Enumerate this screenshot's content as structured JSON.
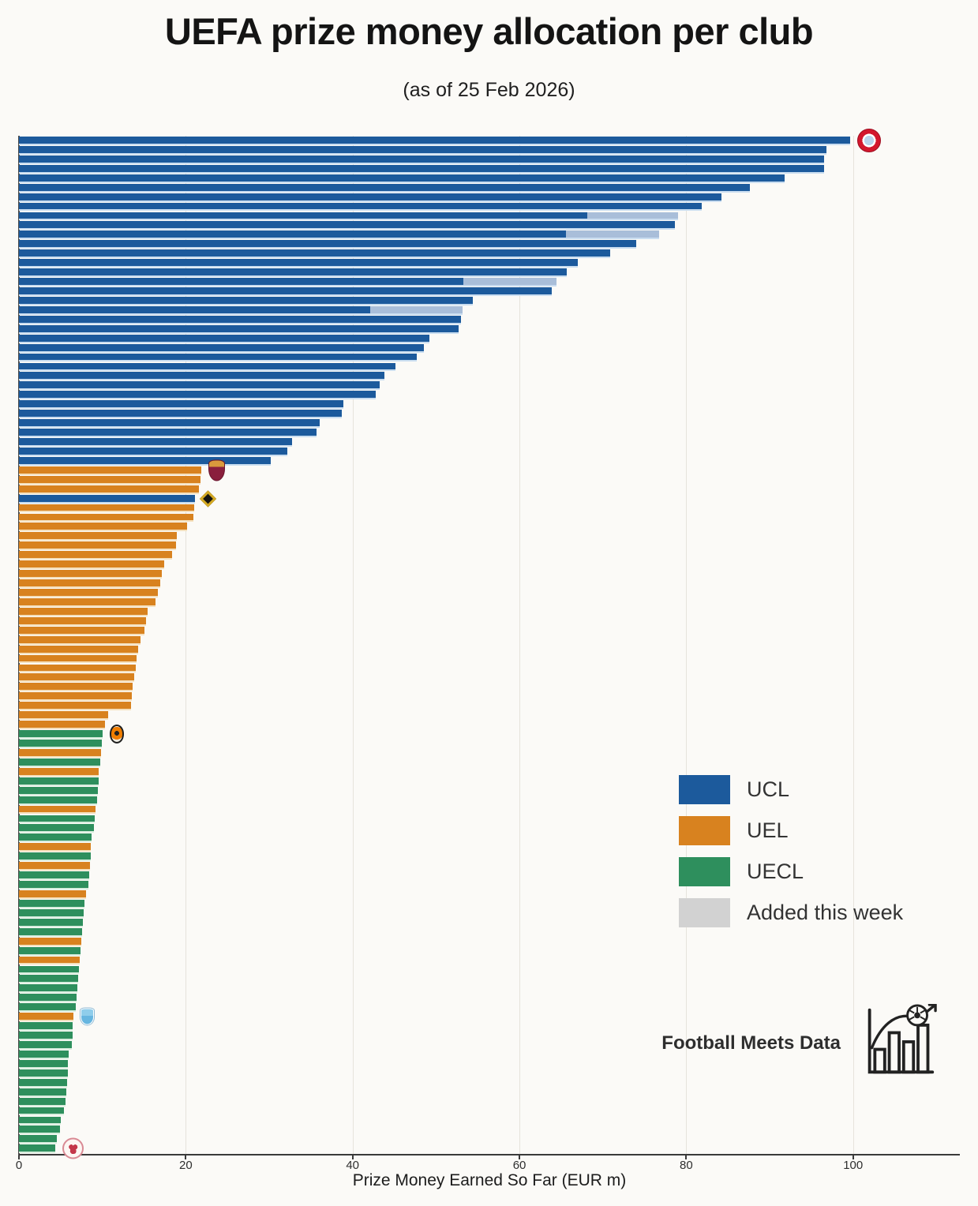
{
  "title": "UEFA prize money allocation per club",
  "subtitle": "(as of 25 Feb 2026)",
  "attribution": {
    "text": "Football Meets Data",
    "logo_icon": "bar-chart-with-football-and-arrow"
  },
  "colors": {
    "background": "#fbfaf7",
    "UCL": "#1c5a9c",
    "UEL": "#d8821f",
    "UECL": "#2e8f5d",
    "added_segment": "#a9bed9",
    "added_legend": "#d2d2d2",
    "row_tint_UCL": "#c9ddf0",
    "row_tint_UEL": "#f5e0bd",
    "row_tint_UECL": "#d8edde",
    "gridline": "#e6e3dc",
    "axis": "#3a3a3a"
  },
  "legend": {
    "items": [
      {
        "id": "UCL",
        "label": "UCL"
      },
      {
        "id": "UEL",
        "label": "UEL"
      },
      {
        "id": "UECL",
        "label": "UECL"
      },
      {
        "id": "added",
        "label": "Added this week"
      }
    ]
  },
  "badges": {
    "bayern": {
      "desc": "red-white roundel crest with light blue centre (FC Bayern München)"
    },
    "roma": {
      "desc": "maroon shield crest with golden top band (AS Roma)"
    },
    "kairat": {
      "desc": "black diamond crest with golden border (FC Kairat)"
    },
    "shakhtar": {
      "desc": "black-orange oval crest (FC Shakhtar Donetsk)"
    },
    "malmo": {
      "desc": "sky blue shield crest with white outline (Malmö FF)"
    },
    "club-red-white": {
      "desc": "white roundel crest with red ring and red marks"
    }
  },
  "chart_data": {
    "type": "bar",
    "orientation": "horizontal",
    "title": "UEFA prize money allocation per club",
    "subtitle": "(as of 25 Feb 2026)",
    "xlabel": "Prize Money Earned So Far (EUR m)",
    "ylabel": "",
    "unit": "EUR m",
    "xlim": [
      0,
      112.8
    ],
    "x_ticks": [
      0,
      20,
      40,
      60,
      80,
      100
    ],
    "grid": "vertical-faint",
    "legend_position": "center-right",
    "series_note": "108 club bars sorted by total prize money; colour = competition (UCL/UEL/UECL); 'a' = lighter segment added this week; no club name labels shown, only small crest badges on six bars",
    "bars": [
      {
        "v": 99.6,
        "c": "UCL",
        "badge": "bayern"
      },
      {
        "v": 96.8,
        "c": "UCL"
      },
      {
        "v": 96.5,
        "c": "UCL"
      },
      {
        "v": 96.5,
        "c": "UCL"
      },
      {
        "v": 91.8,
        "c": "UCL"
      },
      {
        "v": 87.6,
        "c": "UCL"
      },
      {
        "v": 84.2,
        "c": "UCL"
      },
      {
        "v": 81.9,
        "c": "UCL"
      },
      {
        "v": 68.1,
        "a": 10.9,
        "c": "UCL"
      },
      {
        "v": 78.6,
        "c": "UCL"
      },
      {
        "v": 65.6,
        "a": 11.1,
        "c": "UCL"
      },
      {
        "v": 74.0,
        "c": "UCL"
      },
      {
        "v": 70.9,
        "c": "UCL"
      },
      {
        "v": 67.0,
        "c": "UCL"
      },
      {
        "v": 65.7,
        "c": "UCL"
      },
      {
        "v": 53.3,
        "a": 11.1,
        "c": "UCL"
      },
      {
        "v": 63.9,
        "c": "UCL"
      },
      {
        "v": 54.4,
        "c": "UCL"
      },
      {
        "v": 42.1,
        "a": 11.1,
        "c": "UCL"
      },
      {
        "v": 53.0,
        "c": "UCL"
      },
      {
        "v": 52.7,
        "c": "UCL"
      },
      {
        "v": 49.2,
        "c": "UCL"
      },
      {
        "v": 48.5,
        "c": "UCL"
      },
      {
        "v": 47.7,
        "c": "UCL"
      },
      {
        "v": 45.1,
        "c": "UCL"
      },
      {
        "v": 43.8,
        "c": "UCL"
      },
      {
        "v": 43.2,
        "c": "UCL"
      },
      {
        "v": 42.8,
        "c": "UCL"
      },
      {
        "v": 38.9,
        "c": "UCL"
      },
      {
        "v": 38.7,
        "c": "UCL"
      },
      {
        "v": 36.1,
        "c": "UCL"
      },
      {
        "v": 35.7,
        "c": "UCL"
      },
      {
        "v": 32.7,
        "c": "UCL"
      },
      {
        "v": 32.2,
        "c": "UCL"
      },
      {
        "v": 30.2,
        "c": "UCL"
      },
      {
        "v": 21.9,
        "c": "UEL",
        "badge": "roma"
      },
      {
        "v": 21.8,
        "c": "UEL"
      },
      {
        "v": 21.6,
        "c": "UEL"
      },
      {
        "v": 21.1,
        "c": "UCL",
        "badge": "kairat"
      },
      {
        "v": 21.0,
        "c": "UEL"
      },
      {
        "v": 20.9,
        "c": "UEL"
      },
      {
        "v": 20.2,
        "c": "UEL"
      },
      {
        "v": 18.9,
        "c": "UEL"
      },
      {
        "v": 18.8,
        "c": "UEL"
      },
      {
        "v": 18.4,
        "c": "UEL"
      },
      {
        "v": 17.4,
        "c": "UEL"
      },
      {
        "v": 17.1,
        "c": "UEL"
      },
      {
        "v": 16.9,
        "c": "UEL"
      },
      {
        "v": 16.7,
        "c": "UEL"
      },
      {
        "v": 16.4,
        "c": "UEL"
      },
      {
        "v": 15.4,
        "c": "UEL"
      },
      {
        "v": 15.2,
        "c": "UEL"
      },
      {
        "v": 15.0,
        "c": "UEL"
      },
      {
        "v": 14.6,
        "c": "UEL"
      },
      {
        "v": 14.3,
        "c": "UEL"
      },
      {
        "v": 14.1,
        "c": "UEL"
      },
      {
        "v": 14.0,
        "c": "UEL"
      },
      {
        "v": 13.8,
        "c": "UEL"
      },
      {
        "v": 13.6,
        "c": "UEL"
      },
      {
        "v": 13.5,
        "c": "UEL"
      },
      {
        "v": 13.4,
        "c": "UEL"
      },
      {
        "v": 10.7,
        "c": "UEL"
      },
      {
        "v": 10.3,
        "c": "UEL"
      },
      {
        "v": 10.0,
        "c": "UECL",
        "badge": "shakhtar"
      },
      {
        "v": 9.9,
        "c": "UECL"
      },
      {
        "v": 9.8,
        "c": "UEL"
      },
      {
        "v": 9.7,
        "c": "UECL"
      },
      {
        "v": 9.6,
        "c": "UEL"
      },
      {
        "v": 9.6,
        "c": "UECL"
      },
      {
        "v": 9.5,
        "c": "UECL"
      },
      {
        "v": 9.4,
        "c": "UECL"
      },
      {
        "v": 9.2,
        "c": "UEL"
      },
      {
        "v": 9.1,
        "c": "UECL"
      },
      {
        "v": 9.0,
        "c": "UECL"
      },
      {
        "v": 8.7,
        "c": "UECL"
      },
      {
        "v": 8.6,
        "c": "UEL"
      },
      {
        "v": 8.6,
        "c": "UECL"
      },
      {
        "v": 8.5,
        "c": "UEL"
      },
      {
        "v": 8.4,
        "c": "UECL"
      },
      {
        "v": 8.3,
        "c": "UECL"
      },
      {
        "v": 8.0,
        "c": "UEL"
      },
      {
        "v": 7.9,
        "c": "UECL"
      },
      {
        "v": 7.8,
        "c": "UECL"
      },
      {
        "v": 7.7,
        "c": "UECL"
      },
      {
        "v": 7.6,
        "c": "UECL"
      },
      {
        "v": 7.5,
        "c": "UEL"
      },
      {
        "v": 7.4,
        "c": "UECL"
      },
      {
        "v": 7.3,
        "c": "UEL"
      },
      {
        "v": 7.2,
        "c": "UECL"
      },
      {
        "v": 7.1,
        "c": "UECL"
      },
      {
        "v": 7.0,
        "c": "UECL"
      },
      {
        "v": 6.9,
        "c": "UECL"
      },
      {
        "v": 6.8,
        "c": "UECL"
      },
      {
        "v": 6.5,
        "c": "UEL",
        "badge": "malmo"
      },
      {
        "v": 6.4,
        "c": "UECL"
      },
      {
        "v": 6.4,
        "c": "UECL"
      },
      {
        "v": 6.3,
        "c": "UECL"
      },
      {
        "v": 6.0,
        "c": "UECL"
      },
      {
        "v": 5.9,
        "c": "UECL"
      },
      {
        "v": 5.9,
        "c": "UECL"
      },
      {
        "v": 5.8,
        "c": "UECL"
      },
      {
        "v": 5.7,
        "c": "UECL"
      },
      {
        "v": 5.6,
        "c": "UECL"
      },
      {
        "v": 5.4,
        "c": "UECL"
      },
      {
        "v": 5.0,
        "c": "UECL"
      },
      {
        "v": 4.9,
        "c": "UECL"
      },
      {
        "v": 4.5,
        "c": "UECL"
      },
      {
        "v": 4.4,
        "c": "UECL",
        "badge": "club-red-white"
      }
    ]
  }
}
